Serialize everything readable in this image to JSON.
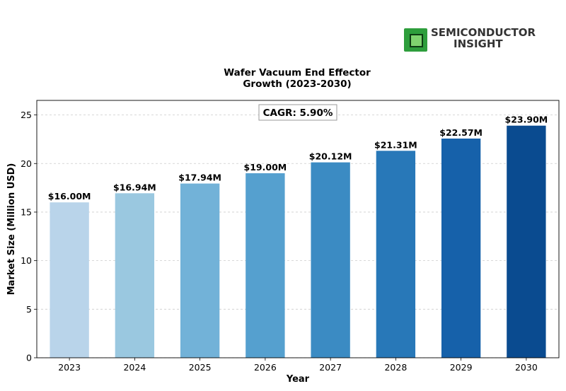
{
  "brand": {
    "line1": "SEMICONDUCTOR",
    "line2": "INSIGHT",
    "logo_icon": "chip-icon",
    "logo_color": "#2e9e3c"
  },
  "chart_data": {
    "type": "bar",
    "title": "Wafer Vacuum End Effector\nGrowth (2023-2030)",
    "xlabel": "Year",
    "ylabel": "Market Size (Million USD)",
    "categories": [
      "2023",
      "2024",
      "2025",
      "2026",
      "2027",
      "2028",
      "2029",
      "2030"
    ],
    "values": [
      16.0,
      16.94,
      17.94,
      19.0,
      20.12,
      21.31,
      22.57,
      23.9
    ],
    "data_labels": [
      "$16.00M",
      "$16.94M",
      "$17.94M",
      "$19.00M",
      "$20.12M",
      "$21.31M",
      "$22.57M",
      "$23.90M"
    ],
    "colors": [
      "#b9d4ea",
      "#9ac8e0",
      "#72b2d8",
      "#55a0cf",
      "#3b8bc3",
      "#2878b8",
      "#1661aa",
      "#0a4b90"
    ],
    "yticks": [
      0,
      5,
      10,
      15,
      20,
      25
    ],
    "ylim": [
      0,
      26.5
    ],
    "grid": true,
    "annotation": "CAGR: 5.90%"
  }
}
